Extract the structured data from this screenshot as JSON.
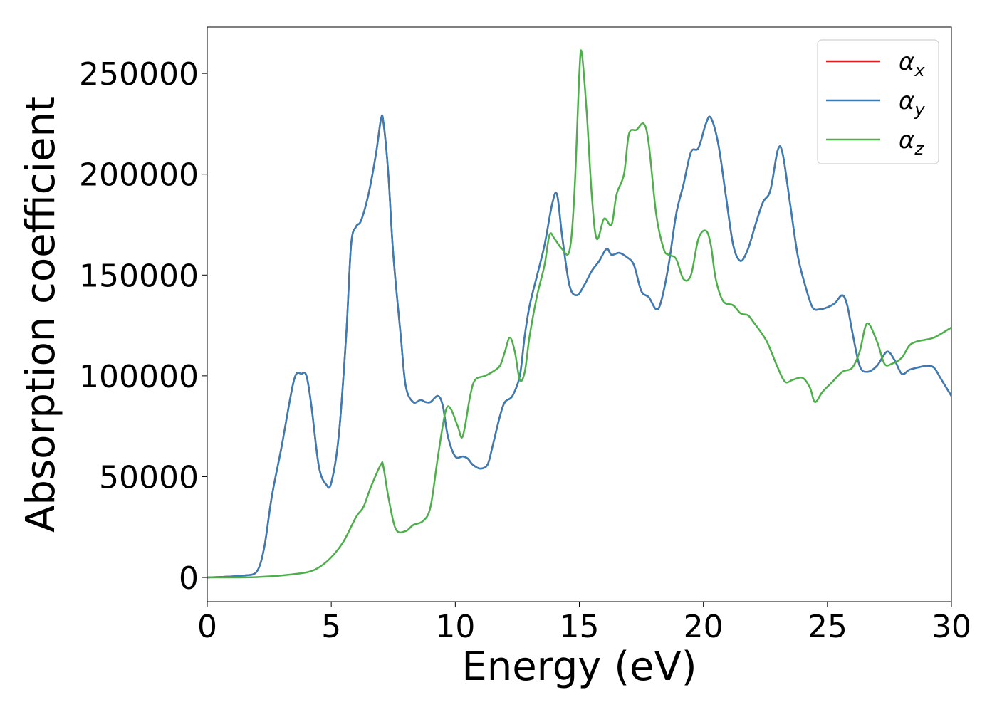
{
  "chart_data": {
    "type": "line",
    "title": "",
    "xlabel": "Energy (eV)",
    "ylabel": "Absorption coefficient",
    "xlim": [
      0,
      30
    ],
    "ylim": [
      -12000,
      273000
    ],
    "xticks": [
      0,
      5,
      10,
      15,
      20,
      25,
      30
    ],
    "yticks": [
      0,
      50000,
      100000,
      150000,
      200000,
      250000
    ],
    "grid": false,
    "legend_position": "top-right",
    "legend": [
      {
        "symbol": "α",
        "subscript": "x",
        "color": "#e41a1c"
      },
      {
        "symbol": "α",
        "subscript": "y",
        "color": "#377eb8"
      },
      {
        "symbol": "α",
        "subscript": "z",
        "color": "#4daf4a"
      }
    ],
    "series": [
      {
        "color": "#e41a1c",
        "x": [
          0,
          1,
          1.5,
          2,
          2.3,
          2.6,
          3,
          3.5,
          3.8,
          4,
          4.2,
          4.5,
          4.8,
          5,
          5.3,
          5.6,
          5.8,
          6,
          6.2,
          6.5,
          6.8,
          7,
          7.1,
          7.3,
          7.5,
          7.8,
          8,
          8.3,
          8.6,
          8.8,
          9,
          9.3,
          9.5,
          9.7,
          10,
          10.3,
          10.5,
          10.7,
          11,
          11.3,
          11.5,
          11.8,
          12,
          12.3,
          12.6,
          12.8,
          13,
          13.3,
          13.6,
          13.9,
          14.1,
          14.3,
          14.6,
          14.9,
          15.2,
          15.5,
          15.8,
          16.1,
          16.3,
          16.6,
          16.9,
          17.2,
          17.5,
          17.8,
          18.1,
          18.3,
          18.6,
          18.9,
          19.2,
          19.5,
          19.8,
          20.1,
          20.3,
          20.6,
          20.9,
          21.2,
          21.5,
          21.8,
          22.1,
          22.4,
          22.7,
          23,
          23.2,
          23.5,
          23.8,
          24.1,
          24.4,
          24.7,
          25,
          25.3,
          25.6,
          25.8,
          26,
          26.3,
          26.6,
          27,
          27.4,
          27.7,
          28,
          28.3,
          28.6,
          29,
          29.3,
          29.6,
          30
        ],
        "y": [
          0,
          500,
          1000,
          3000,
          15000,
          40000,
          65000,
          98000,
          101000,
          100000,
          85000,
          55000,
          46000,
          47000,
          70000,
          120000,
          165000,
          174000,
          177000,
          190000,
          210000,
          227000,
          226000,
          200000,
          160000,
          120000,
          95000,
          87000,
          88000,
          87000,
          87000,
          90000,
          85000,
          70000,
          60000,
          60000,
          59000,
          56000,
          54000,
          56000,
          65000,
          80000,
          87000,
          90000,
          100000,
          120000,
          135000,
          150000,
          165000,
          185000,
          190000,
          170000,
          145000,
          140000,
          145000,
          152000,
          157000,
          163000,
          160000,
          161000,
          159000,
          155000,
          142000,
          139000,
          133000,
          137000,
          155000,
          180000,
          195000,
          211000,
          213000,
          225000,
          228000,
          215000,
          190000,
          165000,
          157000,
          163000,
          175000,
          186000,
          192000,
          212000,
          210000,
          185000,
          160000,
          145000,
          134000,
          133000,
          134000,
          136000,
          140000,
          135000,
          122000,
          105000,
          102000,
          105000,
          112000,
          108000,
          101000,
          103000,
          104000,
          105000,
          104000,
          98000,
          90000
        ]
      },
      {
        "color": "#377eb8",
        "x": [
          0,
          1,
          1.5,
          2,
          2.3,
          2.6,
          3,
          3.5,
          3.8,
          4,
          4.2,
          4.5,
          4.8,
          5,
          5.3,
          5.6,
          5.8,
          6,
          6.2,
          6.5,
          6.8,
          7,
          7.1,
          7.3,
          7.5,
          7.8,
          8,
          8.3,
          8.6,
          8.8,
          9,
          9.3,
          9.5,
          9.7,
          10,
          10.3,
          10.5,
          10.7,
          11,
          11.3,
          11.5,
          11.8,
          12,
          12.3,
          12.6,
          12.8,
          13,
          13.3,
          13.6,
          13.9,
          14.1,
          14.3,
          14.6,
          14.9,
          15.2,
          15.5,
          15.8,
          16.1,
          16.3,
          16.6,
          16.9,
          17.2,
          17.5,
          17.8,
          18.1,
          18.3,
          18.6,
          18.9,
          19.2,
          19.5,
          19.8,
          20.1,
          20.3,
          20.6,
          20.9,
          21.2,
          21.5,
          21.8,
          22.1,
          22.4,
          22.7,
          23,
          23.2,
          23.5,
          23.8,
          24.1,
          24.4,
          24.7,
          25,
          25.3,
          25.6,
          25.8,
          26,
          26.3,
          26.6,
          27,
          27.4,
          27.7,
          28,
          28.3,
          28.6,
          29,
          29.3,
          29.6,
          30
        ],
        "y": [
          0,
          500,
          1000,
          3000,
          15000,
          40000,
          65000,
          98000,
          101000,
          100000,
          85000,
          55000,
          46000,
          47000,
          70000,
          120000,
          165000,
          174000,
          177000,
          190000,
          210000,
          227000,
          226000,
          200000,
          160000,
          120000,
          95000,
          87000,
          88000,
          87000,
          87000,
          90000,
          85000,
          70000,
          60000,
          60000,
          59000,
          56000,
          54000,
          56000,
          65000,
          80000,
          87000,
          90000,
          100000,
          120000,
          135000,
          150000,
          165000,
          185000,
          190000,
          170000,
          145000,
          140000,
          145000,
          152000,
          157000,
          163000,
          160000,
          161000,
          159000,
          155000,
          142000,
          139000,
          133000,
          137000,
          155000,
          180000,
          195000,
          211000,
          213000,
          225000,
          228000,
          215000,
          190000,
          165000,
          157000,
          163000,
          175000,
          186000,
          192000,
          212000,
          210000,
          185000,
          160000,
          145000,
          134000,
          133000,
          134000,
          136000,
          140000,
          135000,
          122000,
          105000,
          102000,
          105000,
          112000,
          108000,
          101000,
          103000,
          104000,
          105000,
          104000,
          98000,
          90000
        ]
      },
      {
        "color": "#4daf4a",
        "x": [
          0,
          1,
          2,
          3,
          4,
          4.5,
          5,
          5.5,
          6,
          6.3,
          6.6,
          7,
          7.1,
          7.3,
          7.6,
          8,
          8.3,
          8.7,
          9,
          9.3,
          9.6,
          9.8,
          10.1,
          10.3,
          10.6,
          10.8,
          11.2,
          11.5,
          11.8,
          12,
          12.2,
          12.4,
          12.6,
          12.8,
          13,
          13.3,
          13.6,
          13.8,
          14,
          14.3,
          14.6,
          14.8,
          15,
          15.1,
          15.3,
          15.5,
          15.7,
          16,
          16.3,
          16.5,
          16.8,
          17,
          17.3,
          17.6,
          17.8,
          18.1,
          18.4,
          18.6,
          18.9,
          19.2,
          19.5,
          19.8,
          20.1,
          20.3,
          20.5,
          20.8,
          21.2,
          21.5,
          21.8,
          22,
          22.3,
          22.6,
          23,
          23.3,
          23.6,
          24,
          24.3,
          24.5,
          24.8,
          25.2,
          25.6,
          26,
          26.3,
          26.6,
          27,
          27.3,
          27.6,
          28,
          28.3,
          28.6,
          29,
          29.3,
          29.6,
          30
        ],
        "y": [
          0,
          0,
          200,
          1000,
          2500,
          5000,
          10000,
          18000,
          30000,
          35000,
          45000,
          56000,
          55000,
          40000,
          24000,
          23000,
          26000,
          28000,
          35000,
          60000,
          82000,
          84000,
          75000,
          70000,
          90000,
          98000,
          100000,
          102000,
          105000,
          112000,
          119000,
          112000,
          98000,
          102000,
          120000,
          140000,
          155000,
          170000,
          168000,
          163000,
          162000,
          190000,
          250000,
          260000,
          230000,
          190000,
          168000,
          178000,
          175000,
          190000,
          200000,
          220000,
          222000,
          225000,
          215000,
          180000,
          163000,
          160000,
          158000,
          148000,
          150000,
          168000,
          172000,
          165000,
          148000,
          137000,
          135000,
          131000,
          130000,
          127000,
          122000,
          116000,
          104000,
          97000,
          98000,
          99000,
          94000,
          87000,
          92000,
          97000,
          102000,
          104000,
          112000,
          126000,
          117000,
          106000,
          106000,
          109000,
          115000,
          117000,
          118000,
          119000,
          121000,
          124000
        ]
      }
    ]
  }
}
